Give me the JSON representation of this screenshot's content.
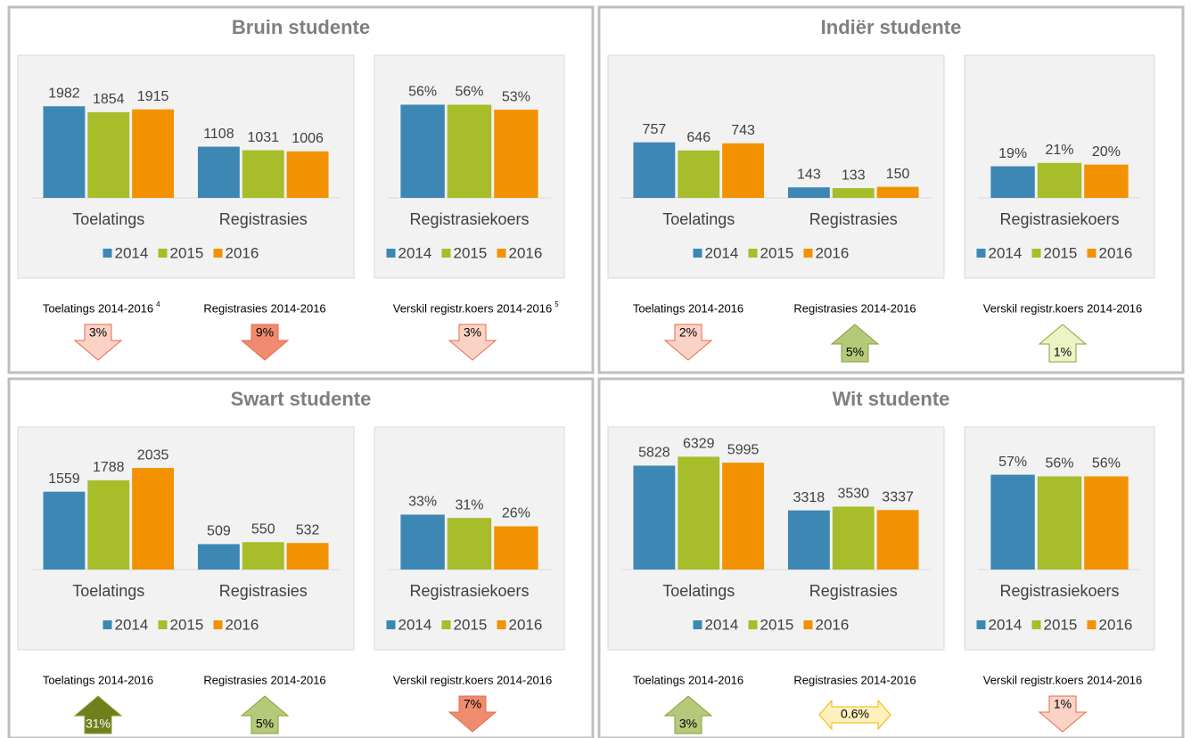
{
  "panels": [
    {
      "title": "Bruin studente",
      "indicators": [
        {
          "label": "Toelatings 2014-2016",
          "note": "4",
          "value": "3%",
          "direction": "down",
          "color": "#fbd3c6"
        },
        {
          "label": "Registrasies 2014-2016",
          "value": "9%",
          "direction": "down",
          "color": "#ef8c6f"
        },
        {
          "label": "Verskil registr.koers 2014-2016",
          "note": "5",
          "value": "3%",
          "direction": "down",
          "color": "#fbd3c6"
        }
      ]
    },
    {
      "title": "Indiër studente",
      "indicators": [
        {
          "label": "Toelatings 2014-2016",
          "value": "2%",
          "direction": "down",
          "color": "#fbd3c6"
        },
        {
          "label": "Registrasies 2014-2016",
          "value": "5%",
          "direction": "up",
          "color": "#b5c97a"
        },
        {
          "label": "Verskil registr.koers 2014-2016",
          "value": "1%",
          "direction": "up",
          "color": "#eef3c6"
        }
      ]
    },
    {
      "title": "Swart studente",
      "indicators": [
        {
          "label": "Toelatings 2014-2016",
          "value": "31%",
          "direction": "up",
          "color": "#6f7f1c"
        },
        {
          "label": "Registrasies 2014-2016",
          "value": "5%",
          "direction": "up",
          "color": "#b5c97a"
        },
        {
          "label": "Verskil registr.koers 2014-2016",
          "value": "7%",
          "direction": "down",
          "color": "#ef8c6f"
        }
      ]
    },
    {
      "title": "Wit studente",
      "indicators": [
        {
          "label": "Toelatings 2014-2016",
          "value": "3%",
          "direction": "up",
          "color": "#b5c97a"
        },
        {
          "label": "Registrasies 2014-2016",
          "value": "0.6%",
          "direction": "flat",
          "color": "#fff0bd"
        },
        {
          "label": "Verskil registr.koers 2014-2016",
          "value": "1%",
          "direction": "down",
          "color": "#fbd3c6"
        }
      ]
    }
  ],
  "chart_data": [
    {
      "type": "bar",
      "categories": [
        "Toelatings",
        "Registrasies"
      ],
      "ylim": [
        0,
        2700
      ],
      "series": [
        {
          "name": "2014",
          "color": "#3d87b5",
          "values": [
            1982,
            1108
          ]
        },
        {
          "name": "2015",
          "color": "#a7bd2a",
          "values": [
            1854,
            1031
          ]
        },
        {
          "name": "2016",
          "color": "#f39200",
          "values": [
            1915,
            1006
          ]
        }
      ]
    },
    {
      "type": "bar",
      "categories": [
        "Registrasiekoers"
      ],
      "ylim": [
        0,
        75
      ],
      "series": [
        {
          "name": "2014",
          "color": "#3d87b5",
          "values": [
            56
          ],
          "value_labels": [
            "56%"
          ]
        },
        {
          "name": "2015",
          "color": "#a7bd2a",
          "values": [
            56
          ],
          "value_labels": [
            "56%"
          ]
        },
        {
          "name": "2016",
          "color": "#f39200",
          "values": [
            53
          ],
          "value_labels": [
            "53%"
          ]
        }
      ]
    },
    {
      "type": "bar",
      "categories": [
        "Toelatings",
        "Registrasies"
      ],
      "ylim": [
        0,
        1700
      ],
      "series": [
        {
          "name": "2014",
          "color": "#3d87b5",
          "values": [
            757,
            143
          ]
        },
        {
          "name": "2015",
          "color": "#a7bd2a",
          "values": [
            646,
            133
          ]
        },
        {
          "name": "2016",
          "color": "#f39200",
          "values": [
            743,
            150
          ]
        }
      ]
    },
    {
      "type": "bar",
      "categories": [
        "Registrasiekoers"
      ],
      "ylim": [
        0,
        75
      ],
      "series": [
        {
          "name": "2014",
          "color": "#3d87b5",
          "values": [
            19
          ],
          "value_labels": [
            "19%"
          ]
        },
        {
          "name": "2015",
          "color": "#a7bd2a",
          "values": [
            21
          ],
          "value_labels": [
            "21%"
          ]
        },
        {
          "name": "2016",
          "color": "#f39200",
          "values": [
            20
          ],
          "value_labels": [
            "20%"
          ]
        }
      ]
    },
    {
      "type": "bar",
      "categories": [
        "Toelatings",
        "Registrasies"
      ],
      "ylim": [
        0,
        2500
      ],
      "series": [
        {
          "name": "2014",
          "color": "#3d87b5",
          "values": [
            1559,
            509
          ]
        },
        {
          "name": "2015",
          "color": "#a7bd2a",
          "values": [
            1788,
            550
          ]
        },
        {
          "name": "2016",
          "color": "#f39200",
          "values": [
            2035,
            532
          ]
        }
      ]
    },
    {
      "type": "bar",
      "categories": [
        "Registrasiekoers"
      ],
      "ylim": [
        0,
        75
      ],
      "series": [
        {
          "name": "2014",
          "color": "#3d87b5",
          "values": [
            33
          ],
          "value_labels": [
            "33%"
          ]
        },
        {
          "name": "2015",
          "color": "#a7bd2a",
          "values": [
            31
          ],
          "value_labels": [
            "31%"
          ]
        },
        {
          "name": "2016",
          "color": "#f39200",
          "values": [
            26
          ],
          "value_labels": [
            "26%"
          ]
        }
      ]
    },
    {
      "type": "bar",
      "categories": [
        "Toelatings",
        "Registrasies"
      ],
      "ylim": [
        0,
        7000
      ],
      "series": [
        {
          "name": "2014",
          "color": "#3d87b5",
          "values": [
            5828,
            3318
          ]
        },
        {
          "name": "2015",
          "color": "#a7bd2a",
          "values": [
            6329,
            3530
          ]
        },
        {
          "name": "2016",
          "color": "#f39200",
          "values": [
            5995,
            3337
          ]
        }
      ]
    },
    {
      "type": "bar",
      "categories": [
        "Registrasiekoers"
      ],
      "ylim": [
        0,
        75
      ],
      "series": [
        {
          "name": "2014",
          "color": "#3d87b5",
          "values": [
            57
          ],
          "value_labels": [
            "57%"
          ]
        },
        {
          "name": "2015",
          "color": "#a7bd2a",
          "values": [
            56
          ],
          "value_labels": [
            "56%"
          ]
        },
        {
          "name": "2016",
          "color": "#f39200",
          "values": [
            56
          ],
          "value_labels": [
            "56%"
          ]
        }
      ]
    }
  ]
}
